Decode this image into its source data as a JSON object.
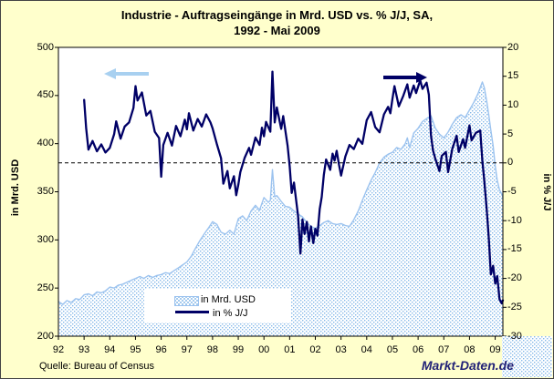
{
  "figure": {
    "title_line1": "Industrie - Auftragseingänge in Mrd. USD vs. % J/J, SA,",
    "title_line2": "1992 - Mai 2009",
    "source": "Quelle: Bureau of Census",
    "watermark": "Markt-Daten.de"
  },
  "colors": {
    "figure_background": "#ffffcc",
    "plot_background": "#ffffff",
    "frame": "#000000",
    "area_dot": "#86b9e8",
    "area_outline": "#9cc3ef",
    "line": "#000066",
    "zero_line": "#000000",
    "arrow_left": "#a8d0f0",
    "arrow_right": "#000066",
    "watermark": "#222277"
  },
  "chart_data": {
    "type": "area+line dual-axis time series",
    "title": "Industrie - Auftragseingänge in Mrd. USD vs. % J/J, SA, 1992 - Mai 2009",
    "grid": "off",
    "zero_reference_line": {
      "axis": "right",
      "value": 0,
      "style": "dashed"
    },
    "left_axis": {
      "label": "in Mrd. USD",
      "range": [
        200,
        500
      ],
      "ticks": [
        500,
        450,
        400,
        350,
        300,
        250,
        200
      ]
    },
    "right_axis": {
      "label": "in % J/J",
      "range": [
        -30,
        20
      ],
      "ticks": [
        20,
        15,
        10,
        5,
        0,
        -5,
        -10,
        -15,
        -20,
        -25,
        -30
      ]
    },
    "x_axis": {
      "range": [
        1992,
        2009.3
      ],
      "tick_years": [
        1992,
        1993,
        1994,
        1995,
        1996,
        1997,
        1998,
        1999,
        2000,
        2001,
        2002,
        2003,
        2004,
        2005,
        2006,
        2007,
        2008,
        2009
      ],
      "tick_labels": [
        "92",
        "93",
        "94",
        "95",
        "96",
        "97",
        "98",
        "99",
        "00",
        "01",
        "02",
        "03",
        "04",
        "05",
        "06",
        "07",
        "08",
        "09"
      ]
    },
    "legend": {
      "position": "bottom-center-inside",
      "items": [
        {
          "label": "in Mrd. USD",
          "type": "area"
        },
        {
          "label": "in % J/J",
          "type": "line"
        }
      ]
    },
    "annotations": [
      {
        "type": "arrow",
        "direction": "left",
        "meaning": "series in Mrd. USD belongs to left axis",
        "color": "#a8d0f0"
      },
      {
        "type": "arrow",
        "direction": "right",
        "meaning": "series in % J/J belongs to right axis",
        "color": "#000066"
      }
    ],
    "series": [
      {
        "name": "in Mrd. USD",
        "type": "area",
        "axis": "left",
        "points": [
          [
            1992.0,
            236
          ],
          [
            1992.17,
            233
          ],
          [
            1992.33,
            237
          ],
          [
            1992.5,
            235
          ],
          [
            1992.67,
            239
          ],
          [
            1992.83,
            238
          ],
          [
            1993.0,
            243
          ],
          [
            1993.17,
            244
          ],
          [
            1993.33,
            242
          ],
          [
            1993.5,
            246
          ],
          [
            1993.67,
            245
          ],
          [
            1993.83,
            247
          ],
          [
            1994.0,
            251
          ],
          [
            1994.17,
            250
          ],
          [
            1994.33,
            253
          ],
          [
            1994.5,
            254
          ],
          [
            1994.67,
            256
          ],
          [
            1994.83,
            258
          ],
          [
            1995.0,
            260
          ],
          [
            1995.17,
            262
          ],
          [
            1995.33,
            260
          ],
          [
            1995.5,
            263
          ],
          [
            1995.67,
            261
          ],
          [
            1995.83,
            263
          ],
          [
            1996.0,
            264
          ],
          [
            1996.17,
            266
          ],
          [
            1996.33,
            265
          ],
          [
            1996.5,
            268
          ],
          [
            1996.67,
            271
          ],
          [
            1996.83,
            274
          ],
          [
            1997.0,
            277
          ],
          [
            1997.17,
            283
          ],
          [
            1997.33,
            291
          ],
          [
            1997.5,
            299
          ],
          [
            1997.67,
            306
          ],
          [
            1997.83,
            312
          ],
          [
            1998.0,
            319
          ],
          [
            1998.17,
            316
          ],
          [
            1998.33,
            308
          ],
          [
            1998.5,
            306
          ],
          [
            1998.67,
            310
          ],
          [
            1998.83,
            306
          ],
          [
            1999.0,
            322
          ],
          [
            1999.17,
            325
          ],
          [
            1999.33,
            320
          ],
          [
            1999.5,
            330
          ],
          [
            1999.67,
            336
          ],
          [
            1999.83,
            331
          ],
          [
            2000.0,
            344
          ],
          [
            2000.17,
            339
          ],
          [
            2000.25,
            341
          ],
          [
            2000.33,
            373
          ],
          [
            2000.42,
            345
          ],
          [
            2000.5,
            346
          ],
          [
            2000.67,
            340
          ],
          [
            2000.83,
            335
          ],
          [
            2001.0,
            334
          ],
          [
            2001.17,
            330
          ],
          [
            2001.33,
            327
          ],
          [
            2001.5,
            324
          ],
          [
            2001.67,
            318
          ],
          [
            2001.83,
            314
          ],
          [
            2002.0,
            312
          ],
          [
            2002.17,
            315
          ],
          [
            2002.33,
            318
          ],
          [
            2002.5,
            320
          ],
          [
            2002.67,
            317
          ],
          [
            2002.83,
            316
          ],
          [
            2003.0,
            317
          ],
          [
            2003.17,
            315
          ],
          [
            2003.33,
            314
          ],
          [
            2003.5,
            321
          ],
          [
            2003.67,
            330
          ],
          [
            2003.83,
            341
          ],
          [
            2004.0,
            352
          ],
          [
            2004.17,
            362
          ],
          [
            2004.33,
            370
          ],
          [
            2004.5,
            380
          ],
          [
            2004.67,
            386
          ],
          [
            2004.83,
            389
          ],
          [
            2005.0,
            391
          ],
          [
            2005.17,
            396
          ],
          [
            2005.33,
            394
          ],
          [
            2005.5,
            400
          ],
          [
            2005.58,
            406
          ],
          [
            2005.67,
            396
          ],
          [
            2005.83,
            411
          ],
          [
            2006.0,
            416
          ],
          [
            2006.17,
            423
          ],
          [
            2006.33,
            426
          ],
          [
            2006.5,
            429
          ],
          [
            2006.67,
            416
          ],
          [
            2006.83,
            410
          ],
          [
            2007.0,
            406
          ],
          [
            2007.17,
            412
          ],
          [
            2007.33,
            420
          ],
          [
            2007.5,
            427
          ],
          [
            2007.67,
            430
          ],
          [
            2007.83,
            427
          ],
          [
            2008.0,
            435
          ],
          [
            2008.17,
            443
          ],
          [
            2008.33,
            452
          ],
          [
            2008.5,
            464
          ],
          [
            2008.58,
            458
          ],
          [
            2008.67,
            444
          ],
          [
            2008.75,
            430
          ],
          [
            2008.83,
            414
          ],
          [
            2008.92,
            398
          ],
          [
            2009.0,
            377
          ],
          [
            2009.08,
            362
          ],
          [
            2009.17,
            352
          ],
          [
            2009.25,
            348
          ],
          [
            2009.3,
            344
          ]
        ]
      },
      {
        "name": "in % J/J",
        "type": "line",
        "axis": "right",
        "points": [
          [
            1993.0,
            10.9
          ],
          [
            1993.08,
            6.0
          ],
          [
            1993.17,
            2.3
          ],
          [
            1993.33,
            3.8
          ],
          [
            1993.5,
            2.0
          ],
          [
            1993.67,
            3.2
          ],
          [
            1993.83,
            1.8
          ],
          [
            1994.0,
            2.6
          ],
          [
            1994.17,
            5.0
          ],
          [
            1994.25,
            7.2
          ],
          [
            1994.42,
            4.2
          ],
          [
            1994.58,
            6.3
          ],
          [
            1994.75,
            7.0
          ],
          [
            1994.92,
            9.5
          ],
          [
            1995.0,
            13.3
          ],
          [
            1995.08,
            10.8
          ],
          [
            1995.25,
            12.2
          ],
          [
            1995.42,
            8.2
          ],
          [
            1995.58,
            9.0
          ],
          [
            1995.75,
            5.4
          ],
          [
            1995.92,
            4.3
          ],
          [
            1996.0,
            -2.4
          ],
          [
            1996.08,
            3.1
          ],
          [
            1996.25,
            5.2
          ],
          [
            1996.42,
            3.0
          ],
          [
            1996.58,
            6.4
          ],
          [
            1996.75,
            4.6
          ],
          [
            1996.92,
            7.5
          ],
          [
            1997.0,
            5.8
          ],
          [
            1997.08,
            8.6
          ],
          [
            1997.25,
            5.6
          ],
          [
            1997.42,
            7.6
          ],
          [
            1997.58,
            6.3
          ],
          [
            1997.75,
            8.4
          ],
          [
            1997.92,
            7.0
          ],
          [
            1998.0,
            6.0
          ],
          [
            1998.17,
            3.2
          ],
          [
            1998.33,
            0.8
          ],
          [
            1998.42,
            -3.6
          ],
          [
            1998.58,
            -1.4
          ],
          [
            1998.67,
            -4.4
          ],
          [
            1998.83,
            -2.3
          ],
          [
            1998.92,
            -5.6
          ],
          [
            1999.0,
            -3.8
          ],
          [
            1999.08,
            -1.6
          ],
          [
            1999.25,
            0.9
          ],
          [
            1999.42,
            2.6
          ],
          [
            1999.5,
            1.4
          ],
          [
            1999.67,
            4.4
          ],
          [
            1999.83,
            3.1
          ],
          [
            1999.92,
            6.1
          ],
          [
            2000.0,
            4.6
          ],
          [
            2000.08,
            7.1
          ],
          [
            2000.25,
            5.4
          ],
          [
            2000.33,
            15.8
          ],
          [
            2000.42,
            7.0
          ],
          [
            2000.5,
            9.6
          ],
          [
            2000.67,
            5.9
          ],
          [
            2000.75,
            8.1
          ],
          [
            2000.92,
            3.0
          ],
          [
            2001.0,
            -0.6
          ],
          [
            2001.08,
            -5.2
          ],
          [
            2001.17,
            -3.4
          ],
          [
            2001.33,
            -9.2
          ],
          [
            2001.42,
            -15.7
          ],
          [
            2001.5,
            -9.8
          ],
          [
            2001.58,
            -12.3
          ],
          [
            2001.67,
            -10.2
          ],
          [
            2001.75,
            -13.6
          ],
          [
            2001.83,
            -11.0
          ],
          [
            2001.92,
            -13.9
          ],
          [
            2002.0,
            -11.4
          ],
          [
            2002.08,
            -12.6
          ],
          [
            2002.17,
            -8.0
          ],
          [
            2002.25,
            -5.9
          ],
          [
            2002.33,
            -2.1
          ],
          [
            2002.42,
            0.6
          ],
          [
            2002.58,
            -1.2
          ],
          [
            2002.67,
            1.6
          ],
          [
            2002.75,
            0.4
          ],
          [
            2002.83,
            2.1
          ],
          [
            2002.92,
            -0.3
          ],
          [
            2003.0,
            -2.2
          ],
          [
            2003.17,
            1.1
          ],
          [
            2003.33,
            3.1
          ],
          [
            2003.5,
            2.4
          ],
          [
            2003.67,
            4.2
          ],
          [
            2003.83,
            3.3
          ],
          [
            2004.0,
            7.4
          ],
          [
            2004.17,
            8.8
          ],
          [
            2004.33,
            6.2
          ],
          [
            2004.5,
            5.3
          ],
          [
            2004.67,
            8.4
          ],
          [
            2004.83,
            9.7
          ],
          [
            2004.92,
            8.6
          ],
          [
            2005.0,
            11.1
          ],
          [
            2005.08,
            13.3
          ],
          [
            2005.25,
            9.8
          ],
          [
            2005.42,
            11.6
          ],
          [
            2005.58,
            13.6
          ],
          [
            2005.67,
            11.3
          ],
          [
            2005.83,
            13.4
          ],
          [
            2005.92,
            12.1
          ],
          [
            2006.08,
            14.3
          ],
          [
            2006.17,
            12.8
          ],
          [
            2006.33,
            13.9
          ],
          [
            2006.42,
            11.8
          ],
          [
            2006.5,
            4.8
          ],
          [
            2006.58,
            2.2
          ],
          [
            2006.67,
            0.7
          ],
          [
            2006.83,
            -1.4
          ],
          [
            2006.92,
            1.2
          ],
          [
            2007.08,
            1.9
          ],
          [
            2007.17,
            -1.6
          ],
          [
            2007.33,
            2.4
          ],
          [
            2007.5,
            4.7
          ],
          [
            2007.58,
            1.9
          ],
          [
            2007.75,
            4.1
          ],
          [
            2007.83,
            2.6
          ],
          [
            2008.0,
            6.5
          ],
          [
            2008.08,
            3.9
          ],
          [
            2008.25,
            5.2
          ],
          [
            2008.42,
            5.6
          ],
          [
            2008.5,
            0.4
          ],
          [
            2008.58,
            -3.2
          ],
          [
            2008.67,
            -8.1
          ],
          [
            2008.75,
            -12.9
          ],
          [
            2008.83,
            -19.3
          ],
          [
            2008.92,
            -17.8
          ],
          [
            2009.0,
            -20.9
          ],
          [
            2009.08,
            -19.6
          ],
          [
            2009.17,
            -23.6
          ],
          [
            2009.25,
            -24.3
          ],
          [
            2009.3,
            -23.8
          ]
        ]
      }
    ]
  }
}
